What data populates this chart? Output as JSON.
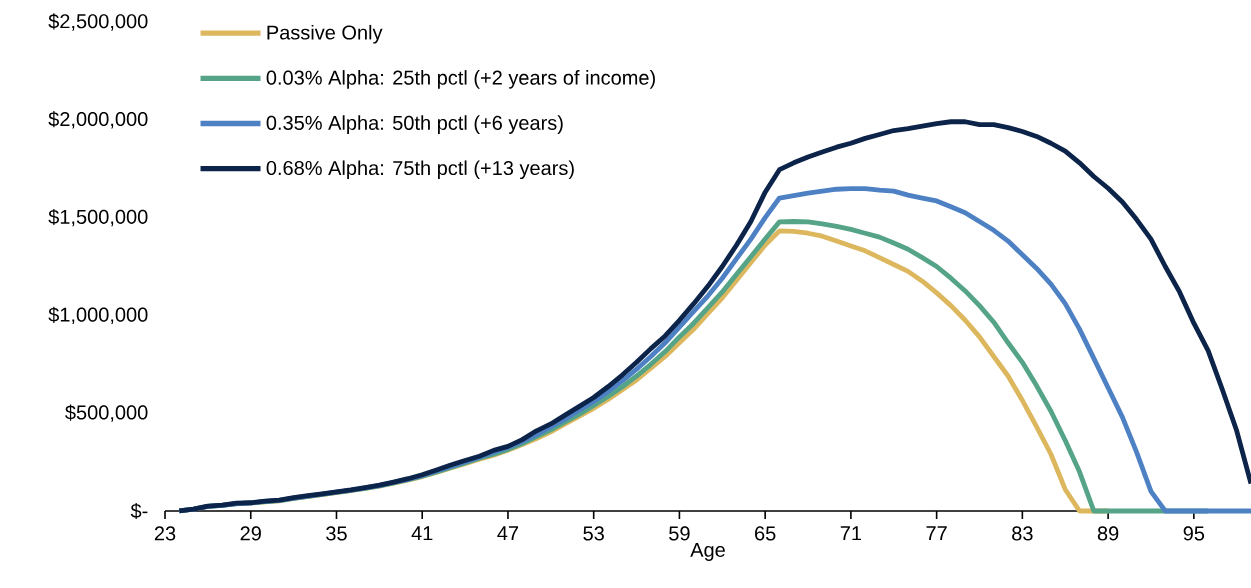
{
  "chart_data": {
    "type": "line",
    "xlabel": "Age",
    "x": [
      24,
      25,
      26,
      27,
      28,
      29,
      30,
      31,
      32,
      33,
      34,
      35,
      36,
      37,
      38,
      39,
      40,
      41,
      42,
      43,
      44,
      45,
      46,
      47,
      48,
      49,
      50,
      51,
      52,
      53,
      54,
      55,
      56,
      57,
      58,
      59,
      60,
      61,
      62,
      63,
      64,
      65,
      66,
      67,
      68,
      69,
      70,
      71,
      72,
      73,
      74,
      75,
      76,
      77,
      78,
      79,
      80,
      81,
      82,
      83,
      84,
      85,
      86,
      87,
      88,
      89,
      90,
      91,
      92,
      93,
      94,
      95,
      96,
      97,
      98,
      99
    ],
    "series": [
      {
        "name": "Passive Only",
        "color": "#dcb75e",
        "values": [
          null,
          null,
          null,
          null,
          null,
          40000,
          47000,
          52000,
          64000,
          74000,
          84000,
          94000,
          104000,
          115000,
          127000,
          142000,
          158000,
          176000,
          197000,
          220000,
          242000,
          265000,
          285000,
          310000,
          340000,
          370000,
          405000,
          445000,
          485000,
          525000,
          570000,
          620000,
          670000,
          730000,
          790000,
          860000,
          930000,
          1010000,
          1090000,
          1180000,
          1270000,
          1360000,
          1432000,
          1430000,
          1420000,
          1405000,
          1380000,
          1355000,
          1330000,
          1295000,
          1260000,
          1225000,
          1175000,
          1115000,
          1050000,
          975000,
          890000,
          790000,
          690000,
          565000,
          430000,
          290000,
          110000,
          0,
          0,
          0,
          null,
          null,
          null,
          null,
          null,
          null,
          null,
          null,
          null,
          null
        ]
      },
      {
        "name": "0.03% Alpha: 25th pctl (+2 years of income)",
        "color": "#55a487",
        "values": [
          0,
          10000,
          23000,
          29000,
          37000,
          41000,
          48000,
          53000,
          65000,
          75000,
          85000,
          95000,
          105000,
          116000,
          128000,
          144000,
          160000,
          178000,
          200000,
          223000,
          246000,
          270000,
          290000,
          315000,
          345000,
          380000,
          415000,
          455000,
          495000,
          540000,
          585000,
          635000,
          690000,
          750000,
          815000,
          890000,
          960000,
          1040000,
          1120000,
          1210000,
          1300000,
          1390000,
          1478000,
          1480000,
          1478000,
          1468000,
          1455000,
          1440000,
          1420000,
          1400000,
          1370000,
          1338000,
          1295000,
          1250000,
          1190000,
          1125000,
          1050000,
          965000,
          860000,
          760000,
          640000,
          510000,
          360000,
          200000,
          0,
          0,
          0,
          0,
          0,
          0,
          0,
          0,
          0,
          null,
          null,
          null
        ]
      },
      {
        "name": "0.35% Alpha: 50th pctl (+6 years)",
        "color": "#4e81c4",
        "values": [
          0,
          10000,
          24000,
          29000,
          38000,
          41000,
          49000,
          54000,
          66000,
          76000,
          86000,
          96000,
          106000,
          118000,
          130000,
          146000,
          162000,
          181000,
          205000,
          228000,
          251000,
          275000,
          300000,
          325000,
          355000,
          390000,
          430000,
          470000,
          515000,
          560000,
          610000,
          665000,
          725000,
          790000,
          860000,
          940000,
          1020000,
          1100000,
          1190000,
          1290000,
          1390000,
          1500000,
          1600000,
          1612000,
          1625000,
          1635000,
          1645000,
          1648000,
          1648000,
          1640000,
          1635000,
          1615000,
          1600000,
          1585000,
          1555000,
          1525000,
          1480000,
          1435000,
          1380000,
          1310000,
          1240000,
          1160000,
          1060000,
          930000,
          780000,
          630000,
          480000,
          300000,
          100000,
          0,
          0,
          0,
          0,
          0,
          0,
          0
        ]
      },
      {
        "name": "0.68% Alpha: 75th pctl (+13 years)",
        "color": "#0c2449",
        "values": [
          0,
          10000,
          25000,
          30000,
          40000,
          42000,
          50000,
          55000,
          68000,
          78000,
          88000,
          98000,
          108000,
          120000,
          132000,
          148000,
          165000,
          185000,
          210000,
          235000,
          258000,
          280000,
          310000,
          330000,
          365000,
          410000,
          445000,
          490000,
          535000,
          580000,
          635000,
          695000,
          760000,
          830000,
          895000,
          975000,
          1060000,
          1150000,
          1250000,
          1360000,
          1480000,
          1630000,
          1745000,
          1780000,
          1810000,
          1835000,
          1860000,
          1880000,
          1905000,
          1925000,
          1945000,
          1955000,
          1968000,
          1980000,
          1990000,
          1990000,
          1975000,
          1975000,
          1960000,
          1940000,
          1915000,
          1880000,
          1840000,
          1780000,
          1710000,
          1650000,
          1580000,
          1490000,
          1390000,
          1250000,
          1120000,
          960000,
          820000,
          620000,
          410000,
          140000
        ]
      }
    ],
    "xlim": [
      23,
      99
    ],
    "xticks": [
      23,
      29,
      35,
      41,
      47,
      53,
      59,
      65,
      71,
      77,
      83,
      89,
      95
    ],
    "ylim": [
      0,
      2500000
    ],
    "yticks": [
      {
        "value": 0,
        "label": "$-"
      },
      {
        "value": 500000,
        "label": "$500,000"
      },
      {
        "value": 1000000,
        "label": "$1,000,000"
      },
      {
        "value": 1500000,
        "label": "$1,500,000"
      },
      {
        "value": 2000000,
        "label": "$2,000,000"
      },
      {
        "value": 2500000,
        "label": "$2,500,000"
      }
    ],
    "grid": false,
    "legend": "top left",
    "marker": "none",
    "line_style": "solid"
  }
}
